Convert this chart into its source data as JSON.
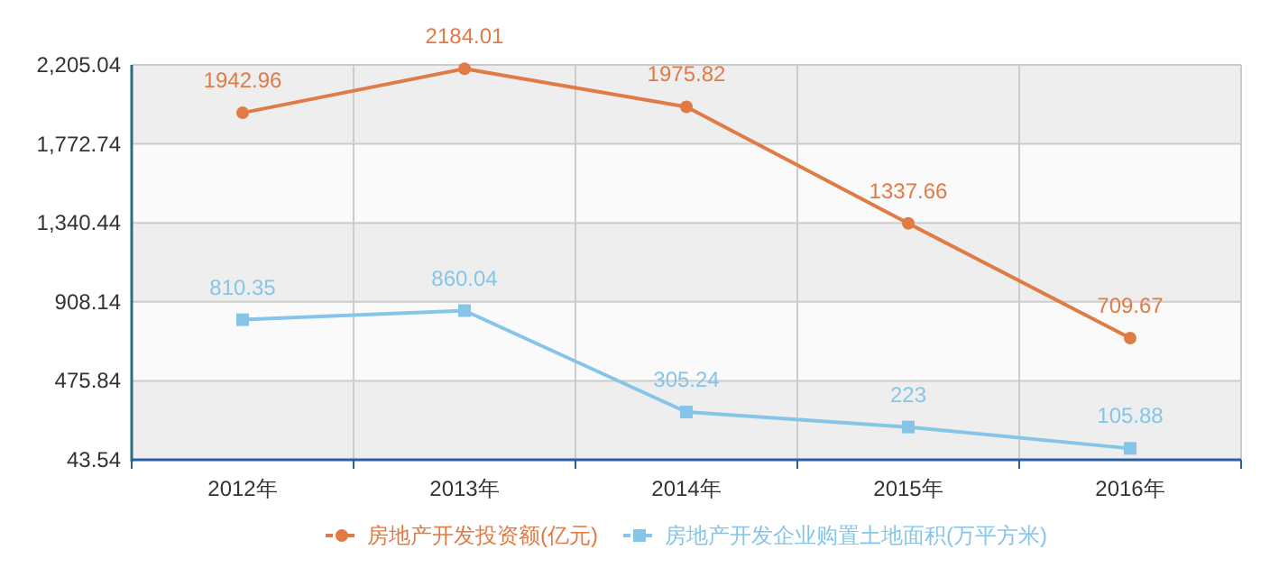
{
  "chart_data": {
    "type": "line",
    "categories": [
      "2012年",
      "2013年",
      "2014年",
      "2015年",
      "2016年"
    ],
    "series": [
      {
        "name": "房地产开发投资额(亿元)",
        "color": "#e07b45",
        "marker": "circle",
        "values": [
          1942.96,
          2184.01,
          1975.82,
          1337.66,
          709.67
        ]
      },
      {
        "name": "房地产开发企业购置土地面积(万平方米)",
        "color": "#86c5e8",
        "marker": "square",
        "values": [
          810.35,
          860.04,
          305.24,
          223,
          105.88
        ]
      }
    ],
    "ylim": [
      43.54,
      2205.04
    ],
    "yticks": [
      {
        "value": 43.54,
        "label": "43.54"
      },
      {
        "value": 475.84,
        "label": "475.84"
      },
      {
        "value": 908.14,
        "label": "908.14"
      },
      {
        "value": 1340.44,
        "label": "1,340.44"
      },
      {
        "value": 1772.74,
        "label": "1,772.74"
      },
      {
        "value": 2205.04,
        "label": "2,205.04"
      }
    ],
    "data_labels": true,
    "grid": true,
    "legend": "bottom"
  }
}
